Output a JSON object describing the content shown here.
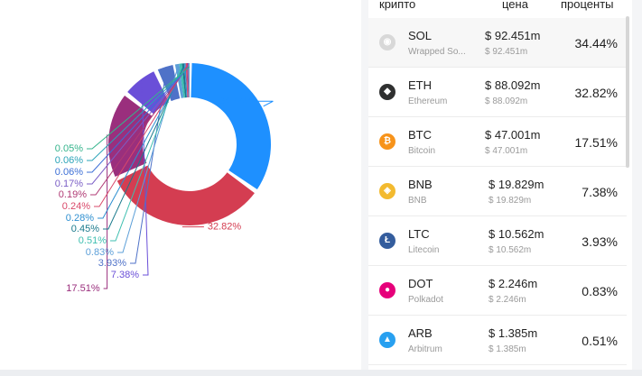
{
  "table": {
    "headers": {
      "crypto": "крипто",
      "price": "цена",
      "percent": "проценты"
    },
    "rows": [
      {
        "symbol": "SOL",
        "name": "Wrapped So...",
        "price": "$ 92.451m",
        "sub_price": "$ 92.451m",
        "percent": "34.44%",
        "icon": "sol-icon",
        "color": "#d8d8d8"
      },
      {
        "symbol": "ETH",
        "name": "Ethereum",
        "price": "$ 88.092m",
        "sub_price": "$ 88.092m",
        "percent": "32.82%",
        "icon": "eth-icon",
        "color": "#2f3030"
      },
      {
        "symbol": "BTC",
        "name": "Bitcoin",
        "price": "$ 47.001m",
        "sub_price": "$ 47.001m",
        "percent": "17.51%",
        "icon": "btc-icon",
        "color": "#f7931a"
      },
      {
        "symbol": "BNB",
        "name": "BNB",
        "price": "$ 19.829m",
        "sub_price": "$ 19.829m",
        "percent": "7.38%",
        "icon": "bnb-icon",
        "color": "#f3ba2f"
      },
      {
        "symbol": "LTC",
        "name": "Litecoin",
        "price": "$ 10.562m",
        "sub_price": "$ 10.562m",
        "percent": "3.93%",
        "icon": "ltc-icon",
        "color": "#345d9d"
      },
      {
        "symbol": "DOT",
        "name": "Polkadot",
        "price": "$ 2.246m",
        "sub_price": "$ 2.246m",
        "percent": "0.83%",
        "icon": "dot-icon",
        "color": "#e6007a"
      },
      {
        "symbol": "ARB",
        "name": "Arbitrum",
        "price": "$ 1.385m",
        "sub_price": "$ 1.385m",
        "percent": "0.51%",
        "icon": "arb-icon",
        "color": "#28a0f0"
      }
    ]
  },
  "chart_data": {
    "type": "pie",
    "values": [
      34.44,
      32.82,
      17.51,
      7.38,
      3.93,
      0.83,
      0.51,
      0.45,
      0.28,
      0.24,
      0.19,
      0.17,
      0.06,
      0.06,
      0.05
    ],
    "labels": [
      "34.44%",
      "32.82%",
      "17.51%",
      "7.38%",
      "3.93%",
      "0.83%",
      "0.51%",
      "0.45%",
      "0.28%",
      "0.24%",
      "0.19%",
      "0.17%",
      "0.06%",
      "0.06%",
      "0.05%"
    ],
    "colors": [
      "#1e90ff",
      "#d43d51",
      "#9a2f7d",
      "#6a4fd8",
      "#4f72c8",
      "#5c9fd8",
      "#3fbfb0",
      "#1b7a8c",
      "#2e8fd0",
      "#d94869",
      "#b03a74",
      "#7b5fc6",
      "#3d6fd6",
      "#2aa3b8",
      "#35b48c"
    ]
  }
}
